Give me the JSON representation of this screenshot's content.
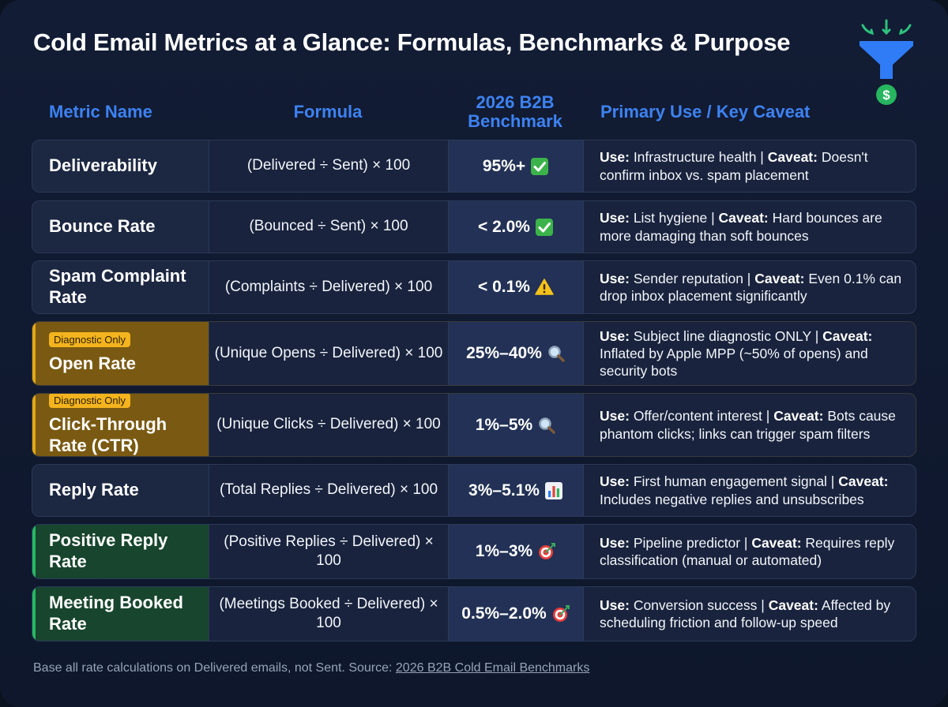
{
  "title": "Cold Email Metrics at a Glance: Formulas, Benchmarks & Purpose",
  "headers": {
    "metric": "Metric Name",
    "formula": "Formula",
    "benchmark_line1": "2026 B2B",
    "benchmark_line2": "Benchmark",
    "use": "Primary Use / Key Caveat"
  },
  "use_label": "Use:",
  "caveat_label": "Caveat:",
  "badge_label": "Diagnostic Only",
  "rows": [
    {
      "metric": "Deliverability",
      "formula": "(Delivered ÷ Sent) × 100",
      "benchmark": "95%+",
      "icon": "check-mark-icon",
      "use": "Infrastructure health |",
      "caveat": "Doesn't confirm inbox vs. spam placement"
    },
    {
      "metric": "Bounce Rate",
      "formula": "(Bounced ÷ Sent) × 100",
      "benchmark": "< 2.0%",
      "icon": "check-mark-icon",
      "use": "List hygiene |",
      "caveat": "Hard bounces are more damaging than soft bounces"
    },
    {
      "metric": "Spam Complaint Rate",
      "formula": "(Complaints ÷ Delivered) × 100",
      "benchmark": "< 0.1%",
      "icon": "warning-icon",
      "use": "Sender reputation |",
      "caveat": "Even 0.1% can drop inbox placement significantly"
    },
    {
      "metric": "Open Rate",
      "formula": "(Unique Opens ÷ Delivered) × 100",
      "benchmark": "25%–40%",
      "icon": "magnifier-icon",
      "use": "Subject line diagnostic ONLY |",
      "caveat": "Inflated by Apple MPP (~50% of opens) and security bots"
    },
    {
      "metric": "Click-Through Rate (CTR)",
      "formula": "(Unique Clicks ÷ Delivered) × 100",
      "benchmark": "1%–5%",
      "icon": "magnifier-icon",
      "use": "Offer/content interest |",
      "caveat": "Bots cause phantom clicks; links can trigger spam filters"
    },
    {
      "metric": "Reply Rate",
      "formula": "(Total Replies ÷ Delivered) × 100",
      "benchmark": "3%–5.1%",
      "icon": "bar-chart-icon",
      "use": "First human engagement signal |",
      "caveat": "Includes negative replies and unsubscribes"
    },
    {
      "metric": "Positive Reply Rate",
      "formula": "(Positive Replies ÷ Delivered) × 100",
      "benchmark": "1%–3%",
      "icon": "target-icon",
      "use": "Pipeline predictor |",
      "caveat": "Requires reply classification (manual or automated)"
    },
    {
      "metric": "Meeting Booked Rate",
      "formula": "(Meetings Booked ÷ Delivered) × 100",
      "benchmark": "0.5%–2.0%",
      "icon": "target-icon",
      "use": "Conversion success |",
      "caveat": "Affected by scheduling friction and follow-up speed"
    }
  ],
  "footer": {
    "text": "Base all rate calculations on Delivered emails, not Sent. Source: ",
    "link": "2026 B2B Cold Email Benchmarks"
  },
  "colors": {
    "background": "#0e172b",
    "header_blue": "#3d82f2",
    "diagnostic_amber": "#e2a816",
    "positive_green": "#25b862"
  }
}
